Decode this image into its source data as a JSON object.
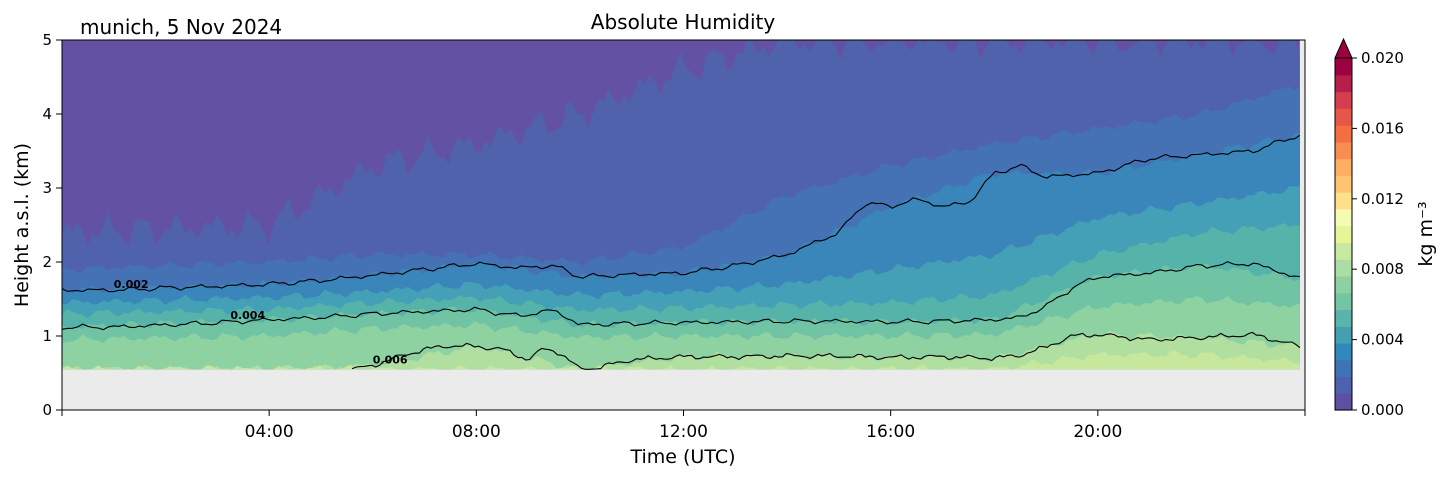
{
  "chart_data": {
    "type": "heatmap",
    "title": "Absolute Humidity",
    "subtitle": "munich, 5 Nov 2024",
    "xlabel": "Time (UTC)",
    "ylabel": "Height a.s.l. (km)",
    "xlim": [
      0,
      24
    ],
    "ylim": [
      0,
      5
    ],
    "x_ticks": [
      {
        "value": 4,
        "label": "04:00"
      },
      {
        "value": 8,
        "label": "08:00"
      },
      {
        "value": 12,
        "label": "12:00"
      },
      {
        "value": 16,
        "label": "16:00"
      },
      {
        "value": 20,
        "label": "20:00"
      }
    ],
    "x_minor_ticks": [
      0,
      24
    ],
    "y_ticks": [
      {
        "value": 0,
        "label": "0"
      },
      {
        "value": 1,
        "label": "1"
      },
      {
        "value": 2,
        "label": "2"
      },
      {
        "value": 3,
        "label": "3"
      },
      {
        "value": 4,
        "label": "4"
      },
      {
        "value": 5,
        "label": "5"
      }
    ],
    "data_bottom_km": 0.55,
    "data_end_hour": 23.9,
    "colorbar": {
      "label": "kg m⁻³",
      "min": 0.0,
      "max": 0.02,
      "extend": "max",
      "ticks": [
        {
          "value": 0.0,
          "label": "0.000"
        },
        {
          "value": 0.004,
          "label": "0.004"
        },
        {
          "value": 0.008,
          "label": "0.008"
        },
        {
          "value": 0.012,
          "label": "0.012"
        },
        {
          "value": 0.016,
          "label": "0.016"
        },
        {
          "value": 0.02,
          "label": "0.020"
        }
      ],
      "colors": [
        "#5e4fa2",
        "#4e61b0",
        "#3f73b6",
        "#3288bd",
        "#459fb3",
        "#5bb4ab",
        "#72c6a4",
        "#8ed0a4",
        "#abdda4",
        "#c7e9a0",
        "#e6f598",
        "#f5fbb2",
        "#fee08b",
        "#fec472",
        "#fdae61",
        "#f88d52",
        "#f46d43",
        "#e55749",
        "#d53e4f",
        "#b51f4a",
        "#9e0142"
      ]
    },
    "series": [
      {
        "name": "0.002",
        "x": [
          0,
          1,
          2,
          3,
          4,
          5,
          6,
          7,
          8,
          8.8,
          9.5,
          10,
          11,
          12,
          13,
          14,
          15,
          15.5,
          16,
          16.5,
          17,
          17.5,
          18,
          18.5,
          19,
          20,
          21,
          22,
          23,
          23.9
        ],
        "values": [
          1.62,
          1.62,
          1.65,
          1.67,
          1.7,
          1.75,
          1.82,
          1.9,
          1.98,
          1.92,
          1.95,
          1.8,
          1.83,
          1.85,
          1.95,
          2.1,
          2.4,
          2.8,
          2.75,
          2.85,
          2.75,
          2.8,
          3.2,
          3.3,
          3.15,
          3.2,
          3.4,
          3.45,
          3.5,
          3.72
        ]
      },
      {
        "name": "0.004",
        "x": [
          0,
          1,
          2,
          3,
          4,
          5,
          6,
          7,
          8,
          8.8,
          9.5,
          10,
          11,
          12,
          13,
          14,
          15,
          16,
          17,
          18,
          18.5,
          19,
          19.5,
          20,
          21,
          22,
          23,
          23.9
        ],
        "values": [
          1.12,
          1.12,
          1.15,
          1.18,
          1.22,
          1.25,
          1.3,
          1.33,
          1.36,
          1.27,
          1.35,
          1.15,
          1.17,
          1.18,
          1.19,
          1.2,
          1.2,
          1.19,
          1.2,
          1.22,
          1.25,
          1.4,
          1.65,
          1.8,
          1.85,
          1.95,
          1.98,
          1.78
        ]
      },
      {
        "name": "0.006",
        "x": [
          5.6,
          6,
          6.5,
          7,
          7.5,
          8,
          8.5,
          9,
          9.3,
          9.6,
          10,
          10.2,
          11,
          12,
          13,
          14,
          15,
          16,
          17,
          18,
          18.5,
          19,
          19.5,
          20,
          21,
          22,
          23,
          23.9
        ],
        "values": [
          0.55,
          0.6,
          0.72,
          0.82,
          0.87,
          0.86,
          0.82,
          0.68,
          0.83,
          0.78,
          0.55,
          0.55,
          0.68,
          0.72,
          0.72,
          0.73,
          0.73,
          0.71,
          0.72,
          0.7,
          0.74,
          0.85,
          1.0,
          1.02,
          0.95,
          0.98,
          1.02,
          0.86
        ]
      }
    ],
    "fill_boundaries_km": [
      {
        "x": [
          0,
          4,
          6,
          8,
          10,
          12,
          14,
          16,
          18,
          20,
          22,
          23.9
        ],
        "values": [
          2.4,
          2.5,
          3.3,
          3.6,
          4.0,
          4.6,
          5.0,
          5.0,
          5.0,
          5.0,
          5.0,
          5.0
        ]
      },
      {
        "x": [
          0,
          4,
          6,
          8,
          10,
          12,
          14,
          16,
          18,
          20,
          22,
          23.9
        ],
        "values": [
          1.9,
          2.0,
          2.1,
          2.1,
          2.0,
          2.2,
          2.9,
          3.3,
          3.6,
          3.8,
          4.0,
          4.4
        ]
      },
      {
        "x": [
          0,
          4,
          6,
          8,
          10,
          12,
          14,
          16,
          18,
          20,
          22,
          23.9
        ],
        "values": [
          1.62,
          1.7,
          1.82,
          1.98,
          1.8,
          1.85,
          2.1,
          2.75,
          3.2,
          3.2,
          3.45,
          3.72
        ]
      },
      {
        "x": [
          0,
          4,
          6,
          8,
          10,
          12,
          14,
          16,
          18,
          20,
          22,
          23.9
        ],
        "values": [
          1.45,
          1.52,
          1.6,
          1.7,
          1.55,
          1.6,
          1.7,
          1.9,
          2.1,
          2.6,
          2.8,
          3.0
        ]
      },
      {
        "x": [
          0,
          4,
          6,
          8,
          10,
          12,
          14,
          16,
          18,
          20,
          22,
          23.9
        ],
        "values": [
          1.3,
          1.36,
          1.45,
          1.52,
          1.35,
          1.38,
          1.42,
          1.45,
          1.55,
          2.1,
          2.4,
          2.5
        ]
      },
      {
        "x": [
          0,
          4,
          6,
          8,
          10,
          12,
          14,
          16,
          18,
          20,
          22,
          23.9
        ],
        "values": [
          1.12,
          1.22,
          1.3,
          1.36,
          1.15,
          1.18,
          1.2,
          1.19,
          1.22,
          1.8,
          1.95,
          1.78
        ]
      },
      {
        "x": [
          0,
          4,
          6,
          8,
          10,
          12,
          14,
          16,
          18,
          20,
          22,
          23.9
        ],
        "values": [
          0.95,
          1.0,
          1.1,
          1.15,
          0.98,
          1.0,
          1.0,
          1.0,
          1.02,
          1.4,
          1.5,
          1.4
        ]
      },
      {
        "x": [
          0,
          4,
          6,
          8,
          10,
          12,
          14,
          16,
          18,
          20,
          22,
          23.9
        ],
        "values": [
          0.55,
          0.55,
          0.6,
          0.86,
          0.55,
          0.72,
          0.73,
          0.71,
          0.7,
          1.02,
          0.98,
          0.86
        ]
      },
      {
        "x": [
          0,
          4,
          6,
          8,
          10,
          12,
          14,
          16,
          18,
          20,
          22,
          23.9
        ],
        "values": [
          0.55,
          0.55,
          0.55,
          0.55,
          0.55,
          0.55,
          0.55,
          0.55,
          0.55,
          0.75,
          0.75,
          0.65
        ]
      }
    ],
    "contour_labels": [
      {
        "text": "0.002",
        "x": 1.0,
        "y": 1.62
      },
      {
        "text": "0.004",
        "x": 3.25,
        "y": 1.2
      },
      {
        "text": "0.006",
        "x": 6.0,
        "y": 0.6
      }
    ]
  }
}
